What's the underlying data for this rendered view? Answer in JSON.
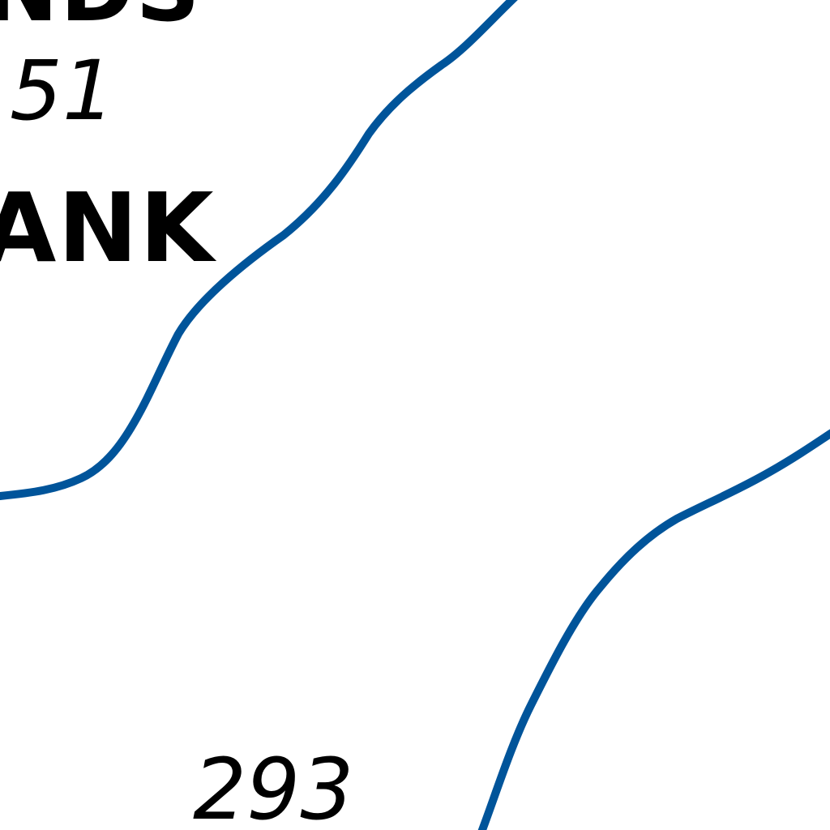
{
  "map": {
    "labels": {
      "partial_top": "NDS",
      "partial_name": "ANK"
    },
    "soundings": [
      "51",
      "293"
    ],
    "contour_color": "#00549a",
    "background_color": "#ffffff"
  }
}
